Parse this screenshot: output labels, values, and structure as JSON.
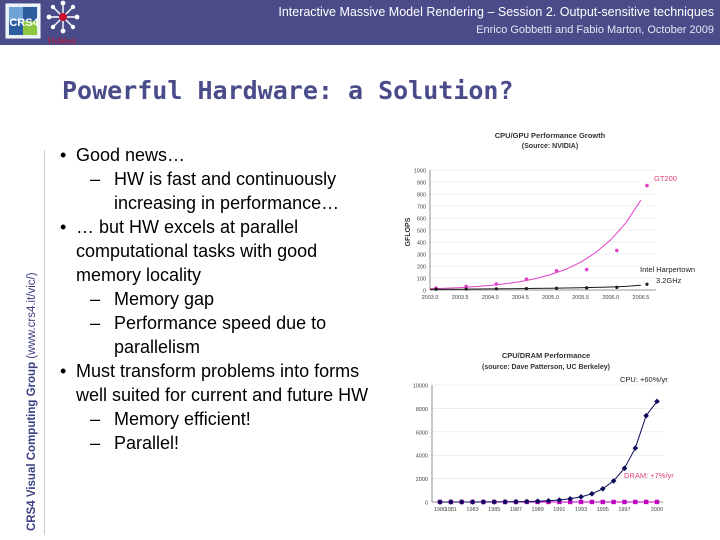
{
  "header": {
    "title": "Interactive Massive Model Rendering – Session 2. Output-sensitive techniques",
    "subtitle": "Enrico Gobbetti and Fabio Marton, October 2009"
  },
  "logos": {
    "crs4": "CRS4",
    "visweek": "VisWeek"
  },
  "sidebar": {
    "label_bold": "CRS4 Visual Computing Group",
    "label_url": "(www.crs4.it/vic/)"
  },
  "slide": {
    "title": "Powerful Hardware: a Solution?",
    "bullets": [
      {
        "level": 1,
        "text": "Good news…"
      },
      {
        "level": 2,
        "text": "HW is fast and continuously increasing in performance…"
      },
      {
        "level": 1,
        "text": "… but HW excels at parallel computational tasks with good memory locality"
      },
      {
        "level": 2,
        "text": "Memory gap"
      },
      {
        "level": 2,
        "text": "Performance speed due to parallelism"
      },
      {
        "level": 1,
        "text": "Must transform problems into forms well suited for current and future HW"
      },
      {
        "level": 2,
        "text": "Memory efficient!"
      },
      {
        "level": 2,
        "text": "Parallel!"
      }
    ]
  },
  "colors": {
    "accent": "#4a4c8a",
    "gpu": "#e040c8",
    "cpu": "#1a1a1a",
    "dram": "#c000c0",
    "cpu_perf": "#0a0a5a",
    "annotation": "#e0407a"
  },
  "chart_data": [
    {
      "type": "line",
      "title": "CPU/GPU Performance Growth",
      "subtitle": "(Source: NVIDIA)",
      "xlabel": "",
      "ylabel": "GFLOPS",
      "ylim": [
        0,
        1000
      ],
      "yticks": [
        "0",
        "100",
        "200",
        "300",
        "400",
        "500",
        "600",
        "700",
        "800",
        "900",
        "1000"
      ],
      "xticks": [
        "2003.0",
        "2003.5",
        "2004.0",
        "2004.5",
        "2005.0",
        "2005.5",
        "2006.0",
        "2006.5"
      ],
      "x": [
        2003.0,
        2003.25,
        2003.5,
        2003.75,
        2004.0,
        2004.25,
        2004.5,
        2004.75,
        2005.0,
        2005.25,
        2005.5,
        2005.75,
        2006.0,
        2006.25,
        2006.5
      ],
      "series": [
        {
          "name": "GPU",
          "values": [
            10,
            14,
            20,
            28,
            38,
            52,
            70,
            95,
            128,
            172,
            232,
            312,
            418,
            560,
            750
          ]
        },
        {
          "name": "CPU",
          "values": [
            5,
            6,
            7,
            8,
            9,
            10,
            12,
            13,
            15,
            17,
            19,
            22,
            25,
            30,
            40
          ]
        }
      ],
      "gpu_points": {
        "x": [
          2003.1,
          2003.6,
          2004.1,
          2004.6,
          2005.1,
          2005.6,
          2006.1,
          2006.6
        ],
        "y": [
          15,
          30,
          50,
          90,
          160,
          170,
          330,
          870
        ]
      },
      "cpu_points": {
        "x": [
          2003.1,
          2003.6,
          2004.1,
          2004.6,
          2005.1,
          2005.6,
          2006.1,
          2006.6
        ],
        "y": [
          6,
          8,
          10,
          12,
          15,
          18,
          22,
          48
        ]
      },
      "annotations": [
        "GT200",
        "Intel Harpertown",
        "3.2GHz"
      ]
    },
    {
      "type": "line",
      "title": "CPU/DRAM Performance",
      "subtitle": "(source: Dave Patterson, UC Berkeley)",
      "xlabel": "",
      "ylabel": "",
      "ylim": [
        0,
        10000
      ],
      "yticks": [
        "0",
        "2000",
        "4000",
        "6000",
        "8000",
        "10000"
      ],
      "categories": [
        "1980",
        "1981",
        "1982",
        "1983",
        "1984",
        "1985",
        "1986",
        "1987",
        "1988",
        "1989",
        "1990",
        "1991",
        "1992",
        "1993",
        "1994",
        "1995",
        "1996",
        "1997",
        "1998",
        "1999",
        "2000"
      ],
      "xticks": [
        "1980",
        "1981",
        "1983",
        "1985",
        "1987",
        "1989",
        "1991",
        "1993",
        "1995",
        "1997",
        "2000"
      ],
      "series": [
        {
          "name": "CPU: +60%/yr",
          "values": [
            1,
            2,
            3,
            4,
            7,
            10,
            16,
            26,
            42,
            67,
            107,
            172,
            275,
            440,
            703,
            1125,
            1801,
            2881,
            4610,
            7376,
            8600
          ]
        },
        {
          "name": "DRAM: +7%/yr",
          "values": [
            1,
            1,
            1,
            1,
            1,
            1,
            2,
            2,
            2,
            2,
            2,
            2,
            2,
            2,
            3,
            3,
            3,
            3,
            3,
            4,
            4
          ]
        }
      ],
      "annotations": [
        "CPU: +60%/yr",
        "DRAM: +7%/yr"
      ]
    }
  ]
}
